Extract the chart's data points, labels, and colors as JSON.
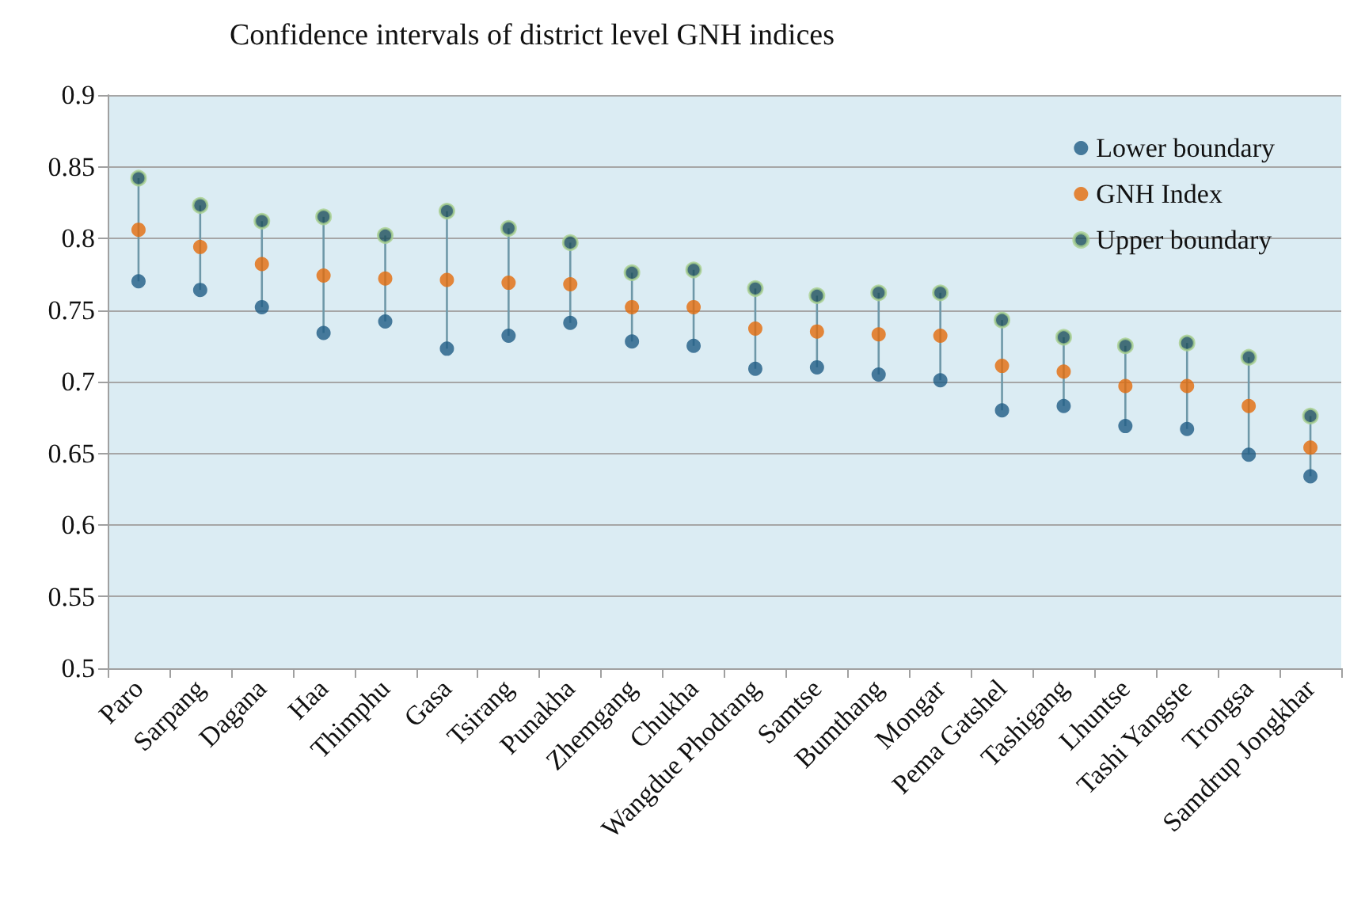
{
  "chart_data": {
    "type": "scatter",
    "title": "Confidence intervals of district level GNH indices",
    "categories": [
      "Paro",
      "Sarpang",
      "Dagana",
      "Haa",
      "Thimphu",
      "Gasa",
      "Tsirang",
      "Punakha",
      "Zhemgang",
      "Chukha",
      "Wangdue Phodrang",
      "Samtse",
      "Bumthang",
      "Mongar",
      "Pema Gatshel",
      "Tashigang",
      "Lhuntse",
      "Tashi Yangste",
      "Trongsa",
      "Samdrup Jongkhar"
    ],
    "series": [
      {
        "name": "Lower boundary",
        "color": "#1f5c85",
        "values": [
          0.77,
          0.764,
          0.752,
          0.734,
          0.742,
          0.723,
          0.732,
          0.741,
          0.728,
          0.725,
          0.709,
          0.71,
          0.705,
          0.701,
          0.68,
          0.683,
          0.669,
          0.667,
          0.649,
          0.634
        ]
      },
      {
        "name": "GNH Index",
        "color": "#e36c0a",
        "values": [
          0.806,
          0.794,
          0.782,
          0.774,
          0.772,
          0.771,
          0.769,
          0.768,
          0.752,
          0.752,
          0.737,
          0.735,
          0.733,
          0.732,
          0.711,
          0.707,
          0.697,
          0.697,
          0.683,
          0.654
        ]
      },
      {
        "name": "Upper boundary",
        "color": "#1d4f5a",
        "values": [
          0.842,
          0.823,
          0.812,
          0.815,
          0.802,
          0.819,
          0.807,
          0.797,
          0.776,
          0.778,
          0.765,
          0.76,
          0.762,
          0.762,
          0.743,
          0.731,
          0.725,
          0.727,
          0.717,
          0.676
        ]
      }
    ],
    "ylim": [
      0.5,
      0.9
    ],
    "yticks": [
      0.5,
      0.55,
      0.6,
      0.65,
      0.7,
      0.75,
      0.8,
      0.85,
      0.9
    ],
    "grid": "y",
    "legend": "top right",
    "marker": "circle"
  }
}
